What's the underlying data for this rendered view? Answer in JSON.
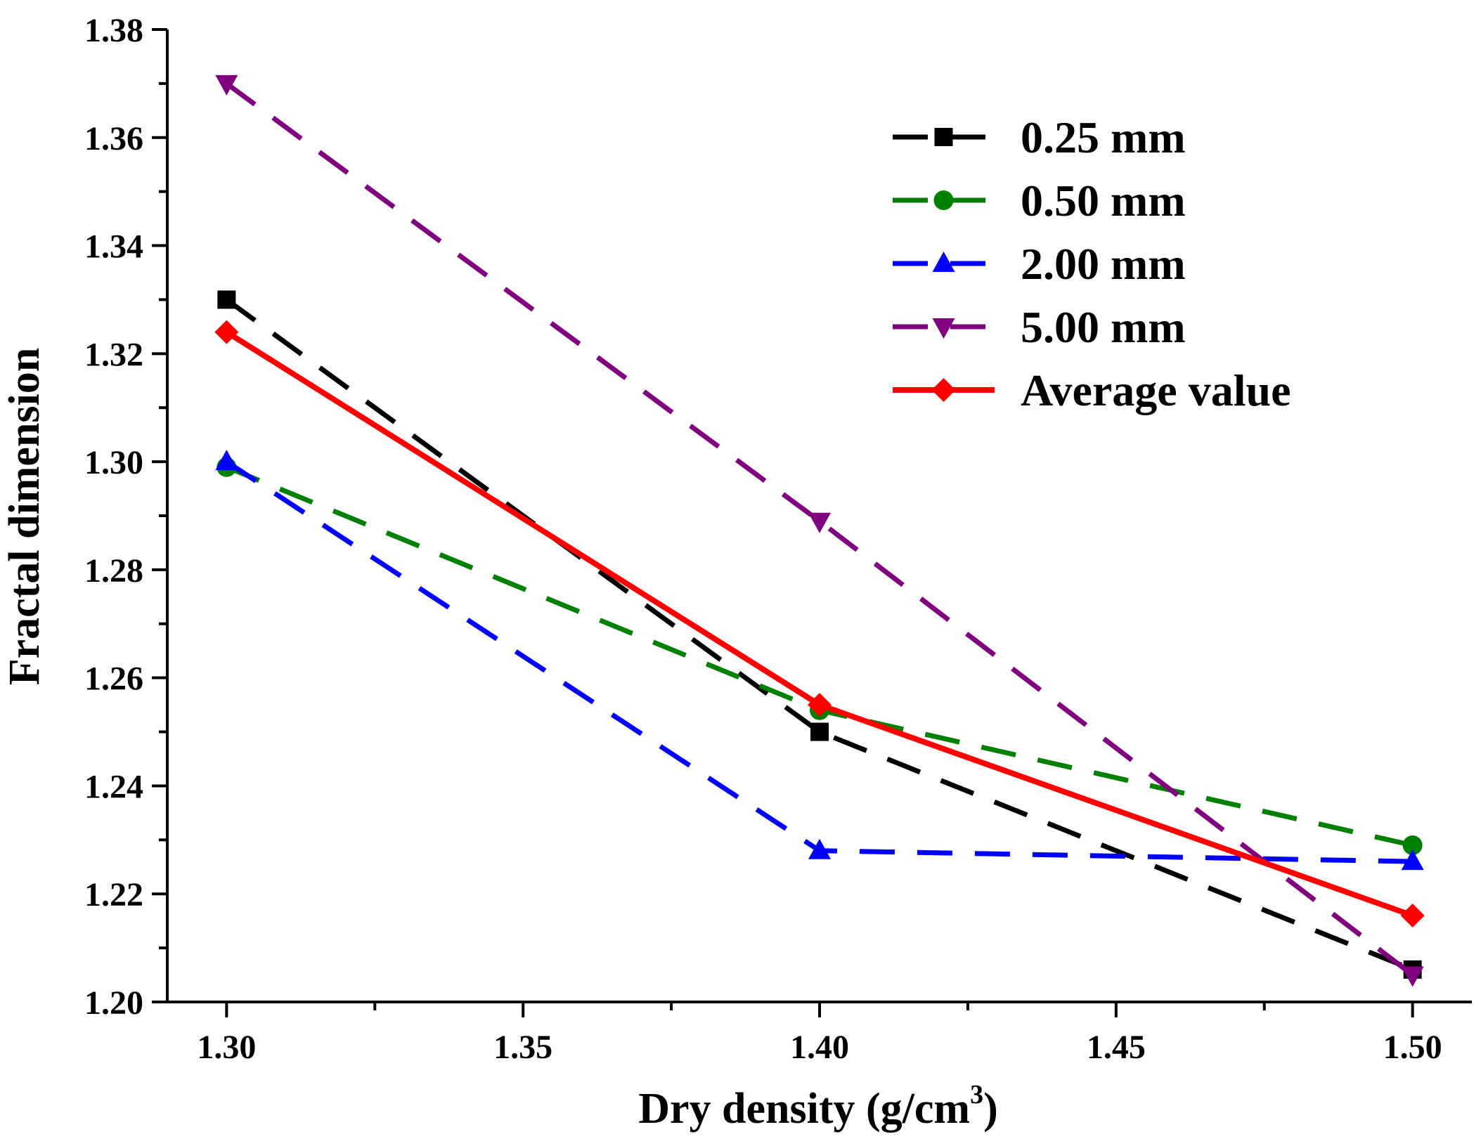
{
  "chart_data": {
    "type": "line",
    "title": "",
    "xlabel": "Dry density (g/cm",
    "xlabel_superscript": "3",
    "xlabel_suffix": ")",
    "ylabel": "Fractal dimension",
    "xlim": [
      1.29,
      1.51
    ],
    "ylim": [
      1.2,
      1.38
    ],
    "x_major_ticks": [
      1.3,
      1.35,
      1.4,
      1.45,
      1.5
    ],
    "x_tick_labels": [
      "1.30",
      "1.35",
      "1.40",
      "1.45",
      "1.50"
    ],
    "y_major_ticks": [
      1.2,
      1.22,
      1.24,
      1.26,
      1.28,
      1.3,
      1.32,
      1.34,
      1.36,
      1.38
    ],
    "y_tick_labels": [
      "1.20",
      "1.22",
      "1.24",
      "1.26",
      "1.28",
      "1.30",
      "1.32",
      "1.34",
      "1.36",
      "1.38"
    ],
    "grid": false,
    "legend_position": "top-right",
    "x": [
      1.3,
      1.4,
      1.5
    ],
    "series": [
      {
        "name": "0.25 mm",
        "values": [
          1.33,
          1.25,
          1.206
        ],
        "color": "#000000",
        "marker": "square",
        "line": "dashed"
      },
      {
        "name": "0.50 mm",
        "values": [
          1.299,
          1.254,
          1.229
        ],
        "color": "#008000",
        "marker": "circle",
        "line": "dashed"
      },
      {
        "name": "2.00 mm",
        "values": [
          1.3,
          1.228,
          1.226
        ],
        "color": "#0000FF",
        "marker": "triangle-up",
        "line": "dashed"
      },
      {
        "name": "5.00 mm",
        "values": [
          1.37,
          1.289,
          1.205
        ],
        "color": "#800080",
        "marker": "triangle-down",
        "line": "dashed"
      },
      {
        "name": "Average value",
        "values": [
          1.324,
          1.255,
          1.216
        ],
        "color": "#FF0000",
        "marker": "diamond",
        "line": "solid"
      }
    ]
  }
}
